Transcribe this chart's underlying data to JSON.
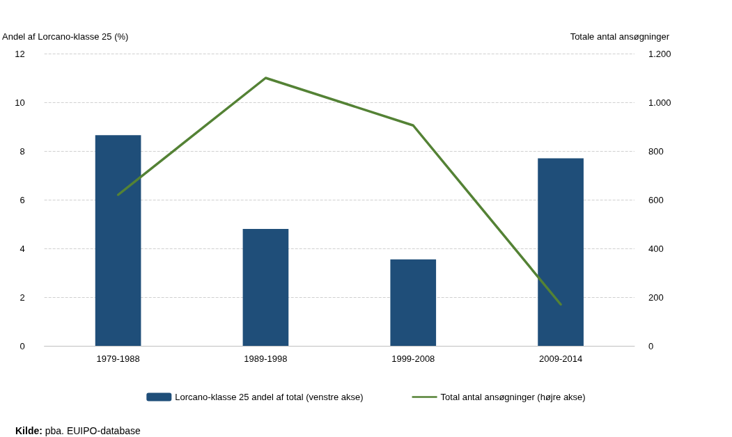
{
  "chart_data": {
    "type": "bar",
    "categories": [
      "1979-1988",
      "1989-1998",
      "1999-2008",
      "2009-2014"
    ],
    "series": [
      {
        "name": "Lorcano-klasse 25 andel af total (venstre akse)",
        "color": "#1f4e79",
        "values": [
          8.65,
          4.8,
          3.55,
          7.7
        ]
      },
      {
        "name": "Total antal ansøgninger (højre akse)",
        "type": "line",
        "axis": "y2",
        "color": "#548235",
        "values": [
          620,
          1100,
          905,
          170
        ]
      }
    ],
    "ylabel": "Andel af Lorcano-klasse 25 (%)",
    "y2label": "Totale antal ansøgninger",
    "ylim": [
      0,
      12
    ],
    "yticks": [
      0,
      2,
      4,
      6,
      8,
      10,
      12
    ],
    "y2lim": [
      0,
      1200
    ],
    "y2ticks": [
      0,
      200,
      400,
      600,
      800,
      {
        "value": 1000,
        "label": "1.000"
      },
      {
        "value": 1200,
        "label": "1.200"
      }
    ],
    "grid": "y",
    "legend": "bottom",
    "marker": "none",
    "line_style": "solid",
    "annotations": [
      "Kilde: pba. EUIPO-database"
    ]
  }
}
